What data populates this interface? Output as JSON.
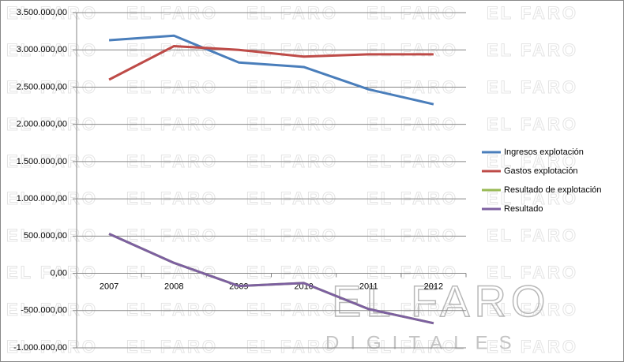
{
  "chart_data": {
    "type": "line",
    "watermark": "EL FARO",
    "logo_sub": "DIGITALES",
    "categories": [
      "2007",
      "2008",
      "2009",
      "2010",
      "2011",
      "2012"
    ],
    "series": [
      {
        "name": "Ingresos explotación",
        "color": "#4a7ebb",
        "values": [
          3130000,
          3190000,
          2830000,
          2770000,
          2470000,
          2270000
        ]
      },
      {
        "name": "Gastos explotación",
        "color": "#be4b48",
        "values": [
          2600000,
          3050000,
          3000000,
          2910000,
          2940000,
          2940000
        ]
      },
      {
        "name": "Resultado de explotación",
        "color": "#98b954",
        "values": [
          530000,
          140000,
          -170000,
          -130000,
          -480000,
          -670000
        ]
      },
      {
        "name": "Resultado",
        "color": "#7d60a0",
        "values": [
          530000,
          140000,
          -170000,
          -130000,
          -480000,
          -670000
        ]
      }
    ],
    "ylim": [
      -1000000,
      3500000
    ],
    "yticks": [
      {
        "value": -1000000,
        "label": "-1.000.000,00"
      },
      {
        "value": -500000,
        "label": "-500.000,00"
      },
      {
        "value": 0,
        "label": "0,00"
      },
      {
        "value": 500000,
        "label": "500.000,00"
      },
      {
        "value": 1000000,
        "label": "1.000.000,00"
      },
      {
        "value": 1500000,
        "label": "1.500.000,00"
      },
      {
        "value": 2000000,
        "label": "2.000.000,00"
      },
      {
        "value": 2500000,
        "label": "2.500.000,00"
      },
      {
        "value": 3000000,
        "label": "3.000.000,00"
      },
      {
        "value": 3500000,
        "label": "3.500.000,00"
      }
    ],
    "grid": true,
    "legend": "right"
  }
}
